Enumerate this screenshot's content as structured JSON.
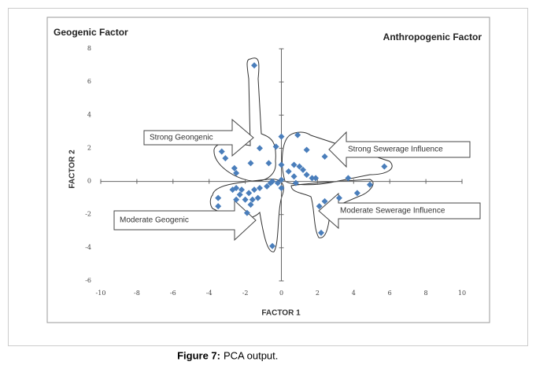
{
  "chart_data": {
    "type": "scatter",
    "xlabel": "FACTOR 1",
    "ylabel": "FACTOR 2",
    "annotations": [
      "Geogenic Factor",
      "Anthropogenic Factor",
      "Strong Geongenic",
      "Strong Sewerage Influence",
      "Moderate Sewerage Influence",
      "Moderate Geogenic"
    ],
    "color": "#4a7ebb",
    "x": [
      -1.5,
      -1.2,
      -0.3,
      0,
      0.9,
      -3.3,
      -3.1,
      -2.6,
      -2.5,
      -1.7,
      -0.7,
      0,
      0.4,
      0.7,
      1.0,
      1.2,
      0.7,
      1.4,
      1.7,
      1.9,
      1.4,
      2.4,
      5.7,
      3.7,
      4.9,
      4.2,
      3.2,
      2.4,
      2.1,
      2.2,
      0.8,
      0,
      -0.2,
      0,
      -0.5,
      -0.8,
      -1.2,
      -1.5,
      -1.8,
      -2.2,
      -2.5,
      -2.7,
      -2.3,
      -1.6,
      -2.0,
      -2.5,
      -1.3,
      -1.7,
      -1.9,
      -3.5,
      -3.5,
      -0.5,
      -0.6
    ],
    "values": [
      7.0,
      2.0,
      2.1,
      2.7,
      2.8,
      1.8,
      1.4,
      0.8,
      0.5,
      1.1,
      1.1,
      1.0,
      0.6,
      1.0,
      0.9,
      0.7,
      0.3,
      0.4,
      0.2,
      0.2,
      1.9,
      1.5,
      0.9,
      0.2,
      -0.2,
      -0.7,
      -1.0,
      -1.2,
      -1.5,
      -3.1,
      -0.1,
      0.1,
      -0.1,
      -0.4,
      0,
      -0.3,
      -0.4,
      -0.5,
      -0.7,
      -0.5,
      -0.4,
      -0.5,
      -0.8,
      -1.1,
      -1.1,
      -1.1,
      -1.0,
      -1.4,
      -1.9,
      -1.0,
      -1.5,
      -3.9,
      -0.1
    ],
    "xlim": [
      -10,
      10
    ],
    "xticks": [
      -10,
      -8,
      -6,
      -4,
      -2,
      0,
      2,
      4,
      6,
      8,
      10
    ],
    "ylim": [
      -6,
      8
    ],
    "yticks": [
      -6,
      -4,
      -2,
      0,
      2,
      4,
      6,
      8
    ]
  },
  "caption": {
    "label": "Figure 7:",
    "text": "PCA output."
  }
}
